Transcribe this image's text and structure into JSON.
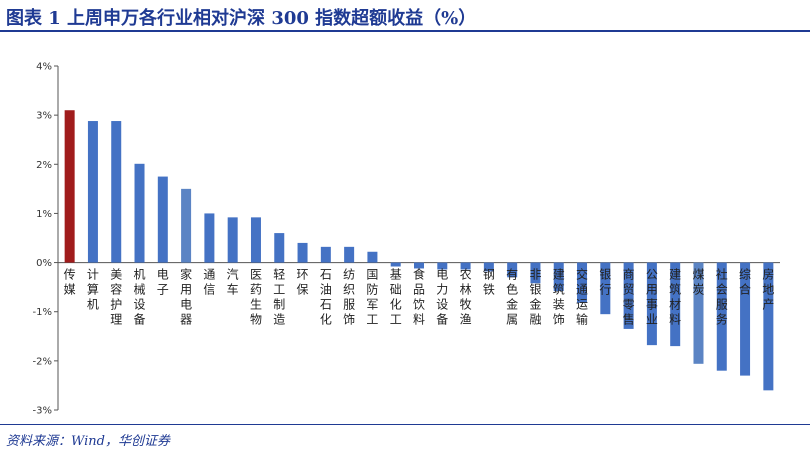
{
  "header": {
    "title": "图表 1   上周申万各行业相对沪深 300 指数超额收益（%）"
  },
  "footer": {
    "source": "资料来源：Wind，华创证券"
  },
  "colors": {
    "highlight": "#A01C1C",
    "bar": "#4472C4",
    "bar_alt": "#5B84C4",
    "axis": "#555555",
    "title": "#1F3A93"
  },
  "chart_data": {
    "type": "bar",
    "title": "",
    "xlabel": "",
    "ylabel": "",
    "ylim": [
      -3,
      4
    ],
    "yticks": [
      4,
      3,
      2,
      1,
      0,
      -1,
      -2,
      -3
    ],
    "ytick_labels": [
      "4%",
      "3%",
      "2%",
      "1%",
      "0%",
      "-1%",
      "-2%",
      "-3%"
    ],
    "grid": false,
    "legend": "none",
    "categories": [
      "传媒",
      "计算机",
      "美容护理",
      "机械设备",
      "电子",
      "家用电器",
      "通信",
      "汽车",
      "医药生物",
      "轻工制造",
      "环保",
      "石油石化",
      "纺织服饰",
      "国防军工",
      "基础化工",
      "食品饮料",
      "电力设备",
      "农林牧渔",
      "钢铁",
      "有色金属",
      "非银金融",
      "建筑装饰",
      "交通运输",
      "银行",
      "商贸零售",
      "公用事业",
      "建筑材料",
      "煤炭",
      "社会服务",
      "综合",
      "房地产"
    ],
    "values": [
      3.1,
      2.88,
      2.88,
      2.01,
      1.75,
      1.5,
      1.0,
      0.92,
      0.92,
      0.6,
      0.4,
      0.32,
      0.32,
      0.22,
      -0.08,
      -0.12,
      -0.14,
      -0.14,
      -0.18,
      -0.3,
      -0.42,
      -0.58,
      -0.82,
      -1.05,
      -1.35,
      -1.68,
      -1.7,
      -2.06,
      -2.2,
      -2.3,
      -2.6
    ],
    "highlight_index": 0,
    "alt_color_indices": [
      5,
      27
    ]
  }
}
